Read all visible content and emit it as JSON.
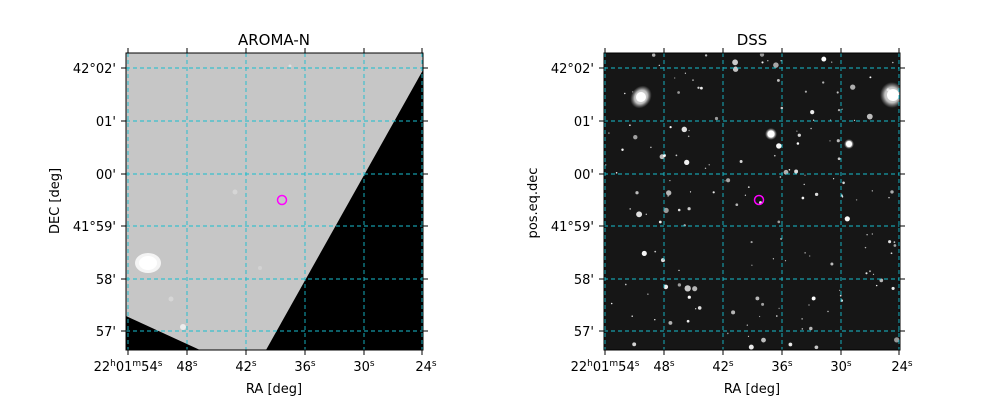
{
  "panels": [
    {
      "id": "aroma",
      "title": "AROMA-N",
      "xlabel": "RA [deg]",
      "ylabel": "DEC [deg]",
      "ra_ticks": [
        {
          "main": "22",
          "sup1": "h",
          "mid": "01",
          "sup2": "m",
          "end": "54",
          "sup3": "s"
        },
        {
          "main": "48",
          "sup1": "s"
        },
        {
          "main": "42",
          "sup1": "s"
        },
        {
          "main": "36",
          "sup1": "s"
        },
        {
          "main": "30",
          "sup1": "s"
        },
        {
          "main": "24",
          "sup1": "s"
        }
      ],
      "dec_ticks": [
        "42°02'",
        "01'",
        "00'",
        "41°59'",
        "58'",
        "57'"
      ]
    },
    {
      "id": "dss",
      "title": "DSS",
      "xlabel": "RA [deg]",
      "ylabel": "pos.eq.dec",
      "ra_ticks": [
        {
          "main": "22",
          "sup1": "h",
          "mid": "01",
          "sup2": "m",
          "end": "54",
          "sup3": "s"
        },
        {
          "main": "48",
          "sup1": "s"
        },
        {
          "main": "42",
          "sup1": "s"
        },
        {
          "main": "36",
          "sup1": "s"
        },
        {
          "main": "30",
          "sup1": "s"
        },
        {
          "main": "24",
          "sup1": "s"
        }
      ],
      "dec_ticks": [
        "42°02'",
        "01'",
        "00'",
        "41°59'",
        "58'",
        "57'"
      ]
    }
  ],
  "colors": {
    "grid": "#17becf",
    "marker": "#ff00ff",
    "aroma_bg": "#c8c8c8",
    "dss_bg": "#151515"
  }
}
